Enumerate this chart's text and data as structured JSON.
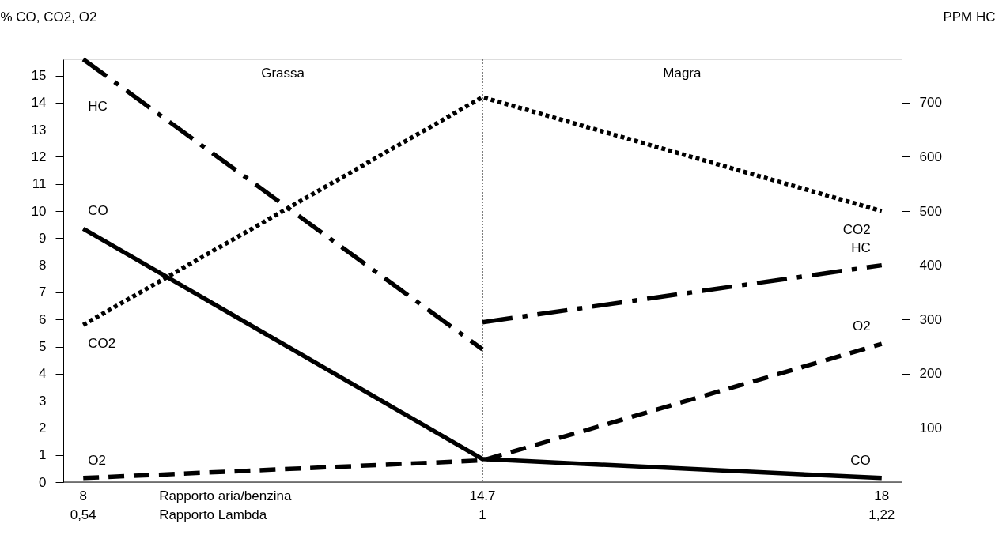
{
  "chart_data": {
    "type": "line",
    "ylabel": "% CO, CO2, O2",
    "y2label": "PPM HC",
    "xlabel": "Rapporto aria/benzina",
    "categories": [
      "8",
      "14.7",
      "18"
    ],
    "series": [
      {
        "name": "CO",
        "color": "#000000",
        "line_style": "solid",
        "values": [
          9.35,
          0.85,
          0.15
        ]
      },
      {
        "name": "CO2",
        "color": "#000000",
        "line_style": "dotted",
        "values": [
          5.8,
          14.2,
          10.0
        ]
      },
      {
        "name": "O2",
        "color": "#000000",
        "line_style": "dashed",
        "values": [
          0.15,
          0.8,
          5.1
        ]
      },
      {
        "name": "HC",
        "color": "#000000",
        "line_style": "dashdot",
        "axis": "y2",
        "values": [
          780,
          245,
          null
        ]
      },
      {
        "name": "HC",
        "color": "#000000",
        "line_style": "dashdot",
        "axis": "y2",
        "values": [
          null,
          295,
          400
        ]
      }
    ],
    "ylim": [
      0,
      15.6
    ],
    "yticks": [
      0,
      1,
      2,
      3,
      4,
      5,
      6,
      7,
      8,
      9,
      10,
      11,
      12,
      13,
      14,
      15
    ],
    "y2lim": [
      0,
      780
    ],
    "y2ticks": [
      100,
      200,
      300,
      400,
      500,
      600,
      700
    ],
    "ref_lines": [
      {
        "axis": "x",
        "value": "14.7",
        "line_style": "dotted",
        "color": "#000000"
      }
    ],
    "grid": false,
    "legend": false,
    "annotations": [
      "Grassa",
      "Magra",
      "Rapporto Lambda",
      "0,54",
      "1",
      "1,22"
    ]
  }
}
